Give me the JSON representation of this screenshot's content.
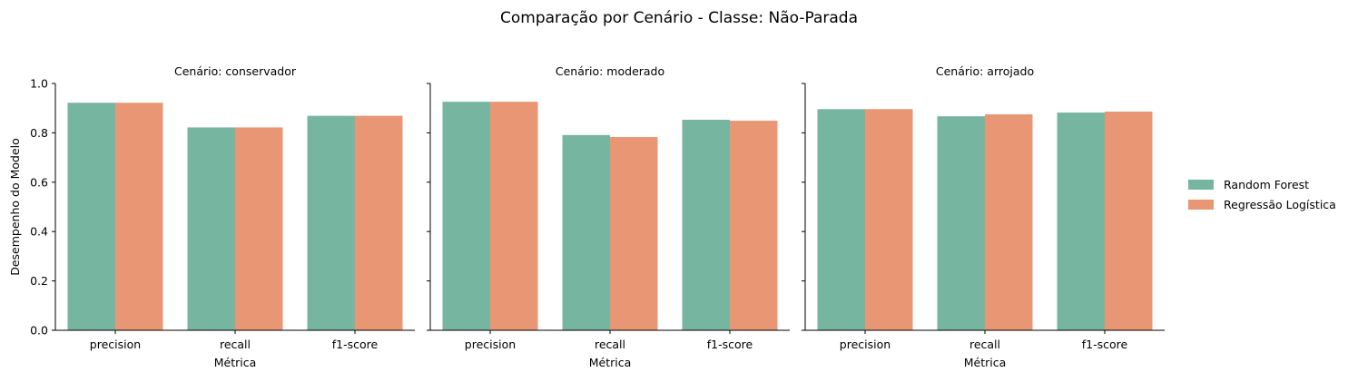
{
  "figure": {
    "title": "Comparação por Cenário - Classe: Não-Parada"
  },
  "colors": {
    "random_forest": "#76b6a0",
    "logistic_regression": "#e99674",
    "axis": "#000000"
  },
  "legend": {
    "placement": "right",
    "items": [
      {
        "label": "Random Forest",
        "color": "#76b6a0"
      },
      {
        "label": "Regressão Logística",
        "color": "#e99674"
      }
    ]
  },
  "chart_data": [
    {
      "type": "bar",
      "title": "Cenário: conservador",
      "xlabel": "Métrica",
      "ylabel": "Desempenho do Modelo",
      "categories": [
        "precision",
        "recall",
        "f1-score"
      ],
      "ylim": [
        0,
        1.0
      ],
      "yticks": [
        "0.0",
        "0.2",
        "0.4",
        "0.6",
        "0.8",
        "1.0"
      ],
      "grid": false,
      "series": [
        {
          "name": "Random Forest",
          "values": [
            0.922,
            0.822,
            0.869
          ]
        },
        {
          "name": "Regressão Logística",
          "values": [
            0.922,
            0.822,
            0.869
          ]
        }
      ]
    },
    {
      "type": "bar",
      "title": "Cenário: moderado",
      "xlabel": "Métrica",
      "ylabel": "",
      "categories": [
        "precision",
        "recall",
        "f1-score"
      ],
      "ylim": [
        0,
        1.0
      ],
      "yticks": [
        "0.0",
        "0.2",
        "0.4",
        "0.6",
        "0.8",
        "1.0"
      ],
      "grid": false,
      "series": [
        {
          "name": "Random Forest",
          "values": [
            0.926,
            0.791,
            0.853
          ]
        },
        {
          "name": "Regressão Logística",
          "values": [
            0.926,
            0.783,
            0.849
          ]
        }
      ]
    },
    {
      "type": "bar",
      "title": "Cenário: arrojado",
      "xlabel": "Métrica",
      "ylabel": "",
      "categories": [
        "precision",
        "recall",
        "f1-score"
      ],
      "ylim": [
        0,
        1.0
      ],
      "yticks": [
        "0.0",
        "0.2",
        "0.4",
        "0.6",
        "0.8",
        "1.0"
      ],
      "grid": false,
      "series": [
        {
          "name": "Random Forest",
          "values": [
            0.896,
            0.867,
            0.882
          ]
        },
        {
          "name": "Regressão Logística",
          "values": [
            0.896,
            0.875,
            0.886
          ]
        }
      ]
    }
  ]
}
